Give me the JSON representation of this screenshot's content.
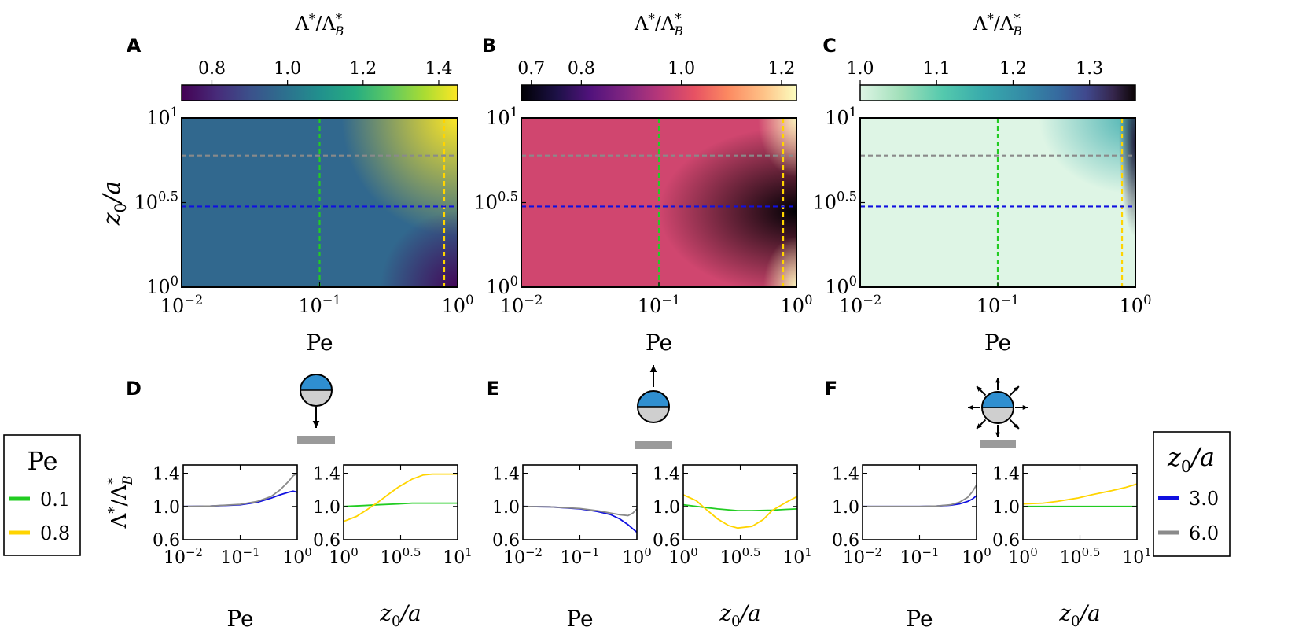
{
  "colors": {
    "green": "#22cc22",
    "yellow": "#ffd400",
    "blue": "#1010e0",
    "gray": "#8a8a8a",
    "frame": "#000000"
  },
  "chart_data": [
    {
      "panel": "A",
      "type": "heatmap",
      "colormap": "viridis",
      "colorbar": {
        "label": "Λ*/Λ*_B",
        "range": [
          0.72,
          1.45
        ],
        "ticks": [
          0.8,
          1.0,
          1.2,
          1.4
        ],
        "tick_labels": [
          "0.8",
          "1.0",
          "1.2",
          "1.4"
        ]
      },
      "x": {
        "label": "Pe",
        "scale": "log",
        "range": [
          0.01,
          1
        ],
        "tick_labels": [
          "10^-2",
          "10^-1",
          "10^0"
        ]
      },
      "y": {
        "label": "z0/a",
        "scale": "log",
        "range": [
          1,
          10
        ],
        "tick_labels": [
          "10^0",
          "10^0.5",
          "10^1"
        ]
      },
      "guides": [
        {
          "orient": "v",
          "value": 0.1,
          "color": "green"
        },
        {
          "orient": "v",
          "value": 0.8,
          "color": "yellow"
        },
        {
          "orient": "h",
          "value": 3.0,
          "color": "blue"
        },
        {
          "orient": "h",
          "value": 6.0,
          "color": "gray"
        }
      ]
    },
    {
      "panel": "B",
      "type": "heatmap",
      "colormap": "magma",
      "colorbar": {
        "label": "Λ*/Λ*_B",
        "range": [
          0.68,
          1.23
        ],
        "ticks": [
          0.7,
          0.8,
          1.0,
          1.2
        ],
        "tick_labels": [
          "0.7",
          "0.8",
          "1.0",
          "1.2"
        ]
      },
      "x": {
        "label": "Pe",
        "scale": "log",
        "range": [
          0.01,
          1
        ],
        "tick_labels": [
          "10^-2",
          "10^-1",
          "10^0"
        ]
      },
      "y": {
        "label": "",
        "scale": "log",
        "range": [
          1,
          10
        ],
        "tick_labels": [
          "10^0",
          "10^0.5",
          "10^1"
        ]
      },
      "guides": [
        {
          "orient": "v",
          "value": 0.1,
          "color": "green"
        },
        {
          "orient": "v",
          "value": 0.8,
          "color": "yellow"
        },
        {
          "orient": "h",
          "value": 3.0,
          "color": "blue"
        },
        {
          "orient": "h",
          "value": 6.0,
          "color": "gray"
        }
      ]
    },
    {
      "panel": "C",
      "type": "heatmap",
      "colormap": "mako_r",
      "colorbar": {
        "label": "Λ*/Λ*_B",
        "range": [
          1.0,
          1.36
        ],
        "ticks": [
          1.0,
          1.1,
          1.2,
          1.3
        ],
        "tick_labels": [
          "1.0",
          "1.1",
          "1.2",
          "1.3"
        ]
      },
      "x": {
        "label": "Pe",
        "scale": "log",
        "range": [
          0.01,
          1
        ],
        "tick_labels": [
          "10^-2",
          "10^-1",
          "10^0"
        ]
      },
      "y": {
        "label": "",
        "scale": "log",
        "range": [
          1,
          10
        ],
        "tick_labels": [
          "10^0",
          "10^0.5",
          "10^1"
        ]
      },
      "guides": [
        {
          "orient": "v",
          "value": 0.1,
          "color": "green"
        },
        {
          "orient": "v",
          "value": 0.8,
          "color": "yellow"
        },
        {
          "orient": "h",
          "value": 3.0,
          "color": "blue"
        },
        {
          "orient": "h",
          "value": 6.0,
          "color": "gray"
        }
      ]
    },
    {
      "panel": "D",
      "type": "line",
      "swimmer": "down",
      "vs_Pe": {
        "x_scale": "log",
        "xlim": [
          0.01,
          1
        ],
        "ylim": [
          0.6,
          1.5
        ],
        "xlabel": "Pe",
        "ylabel": "Λ*/Λ*_B",
        "series": [
          {
            "color": "blue",
            "x": [
              0.01,
              0.03,
              0.1,
              0.2,
              0.35,
              0.5,
              0.7,
              0.85,
              1.0
            ],
            "y": [
              1.0,
              1.005,
              1.02,
              1.05,
              1.1,
              1.14,
              1.17,
              1.185,
              1.17
            ]
          },
          {
            "color": "gray",
            "x": [
              0.01,
              0.03,
              0.1,
              0.2,
              0.35,
              0.5,
              0.7,
              0.85,
              1.0
            ],
            "y": [
              1.0,
              1.005,
              1.025,
              1.06,
              1.12,
              1.2,
              1.3,
              1.37,
              1.4
            ]
          }
        ]
      },
      "vs_z0": {
        "x_scale": "log",
        "xlim": [
          1,
          10
        ],
        "ylim": [
          0.6,
          1.5
        ],
        "xlabel": "z0/a",
        "series": [
          {
            "color": "green",
            "x": [
              1,
              1.5,
              2,
              3,
              4,
              6,
              8,
              10
            ],
            "y": [
              1.0,
              1.01,
              1.02,
              1.03,
              1.04,
              1.04,
              1.04,
              1.04
            ]
          },
          {
            "color": "yellow",
            "x": [
              1,
              1.3,
              1.6,
              2,
              2.5,
              3,
              4,
              5,
              6,
              8,
              10
            ],
            "y": [
              0.82,
              0.88,
              0.96,
              1.05,
              1.15,
              1.23,
              1.33,
              1.38,
              1.39,
              1.39,
              1.39
            ]
          }
        ]
      }
    },
    {
      "panel": "E",
      "type": "line",
      "swimmer": "up",
      "vs_Pe": {
        "x_scale": "log",
        "xlim": [
          0.01,
          1
        ],
        "ylim": [
          0.6,
          1.5
        ],
        "xlabel": "Pe",
        "series": [
          {
            "color": "blue",
            "x": [
              0.01,
              0.03,
              0.1,
              0.2,
              0.35,
              0.5,
              0.7,
              0.85,
              1.0
            ],
            "y": [
              1.0,
              0.995,
              0.97,
              0.94,
              0.9,
              0.85,
              0.78,
              0.73,
              0.69
            ]
          },
          {
            "color": "gray",
            "x": [
              0.01,
              0.03,
              0.1,
              0.2,
              0.35,
              0.5,
              0.7,
              0.85,
              1.0
            ],
            "y": [
              1.0,
              0.995,
              0.975,
              0.95,
              0.92,
              0.9,
              0.89,
              0.92,
              0.97
            ]
          }
        ]
      },
      "vs_z0": {
        "x_scale": "log",
        "xlim": [
          1,
          10
        ],
        "ylim": [
          0.6,
          1.5
        ],
        "xlabel": "z0/a",
        "series": [
          {
            "color": "green",
            "x": [
              1,
              1.5,
              2,
              3,
              4,
              6,
              8,
              10
            ],
            "y": [
              1.02,
              0.99,
              0.97,
              0.95,
              0.95,
              0.955,
              0.965,
              0.97
            ]
          },
          {
            "color": "yellow",
            "x": [
              1,
              1.3,
              1.6,
              2,
              2.5,
              3,
              4,
              5,
              6,
              8,
              10
            ],
            "y": [
              1.14,
              1.07,
              0.96,
              0.85,
              0.77,
              0.74,
              0.76,
              0.84,
              0.95,
              1.05,
              1.12
            ]
          }
        ]
      }
    },
    {
      "panel": "F",
      "type": "line",
      "swimmer": "radial",
      "vs_Pe": {
        "x_scale": "log",
        "xlim": [
          0.01,
          1
        ],
        "ylim": [
          0.6,
          1.5
        ],
        "xlabel": "Pe",
        "series": [
          {
            "color": "blue",
            "x": [
              0.01,
              0.03,
              0.1,
              0.2,
              0.35,
              0.5,
              0.7,
              0.85,
              1.0
            ],
            "y": [
              1.0,
              1.0,
              1.0,
              1.005,
              1.015,
              1.03,
              1.06,
              1.09,
              1.13
            ]
          },
          {
            "color": "gray",
            "x": [
              0.01,
              0.03,
              0.1,
              0.2,
              0.35,
              0.5,
              0.7,
              0.85,
              1.0
            ],
            "y": [
              1.0,
              1.0,
              1.0,
              1.005,
              1.02,
              1.05,
              1.11,
              1.18,
              1.26
            ]
          }
        ]
      },
      "vs_z0": {
        "x_scale": "log",
        "xlim": [
          1,
          10
        ],
        "ylim": [
          0.6,
          1.5
        ],
        "xlabel": "z0/a",
        "series": [
          {
            "color": "green",
            "x": [
              1,
              2,
              4,
              6,
              10
            ],
            "y": [
              1.0,
              1.0,
              1.0,
              1.0,
              1.0
            ]
          },
          {
            "color": "yellow",
            "x": [
              1,
              1.5,
              2,
              3,
              4,
              6,
              8,
              10
            ],
            "y": [
              1.03,
              1.04,
              1.06,
              1.1,
              1.14,
              1.19,
              1.23,
              1.27
            ]
          }
        ]
      }
    }
  ],
  "legends": {
    "pe": {
      "title": "Pe",
      "entries": [
        {
          "label": "0.1",
          "color": "green"
        },
        {
          "label": "0.8",
          "color": "yellow"
        }
      ]
    },
    "z0": {
      "title": "z0/a",
      "entries": [
        {
          "label": "3.0",
          "color": "blue"
        },
        {
          "label": "6.0",
          "color": "gray"
        }
      ]
    }
  },
  "line_ticks_y": [
    "0.6",
    "1.0",
    "1.4"
  ],
  "line_ticks_pe": [
    "10^-2",
    "10^-1",
    "10^0"
  ],
  "line_ticks_z0": [
    "10^0",
    "10^0.5",
    "10^1"
  ]
}
